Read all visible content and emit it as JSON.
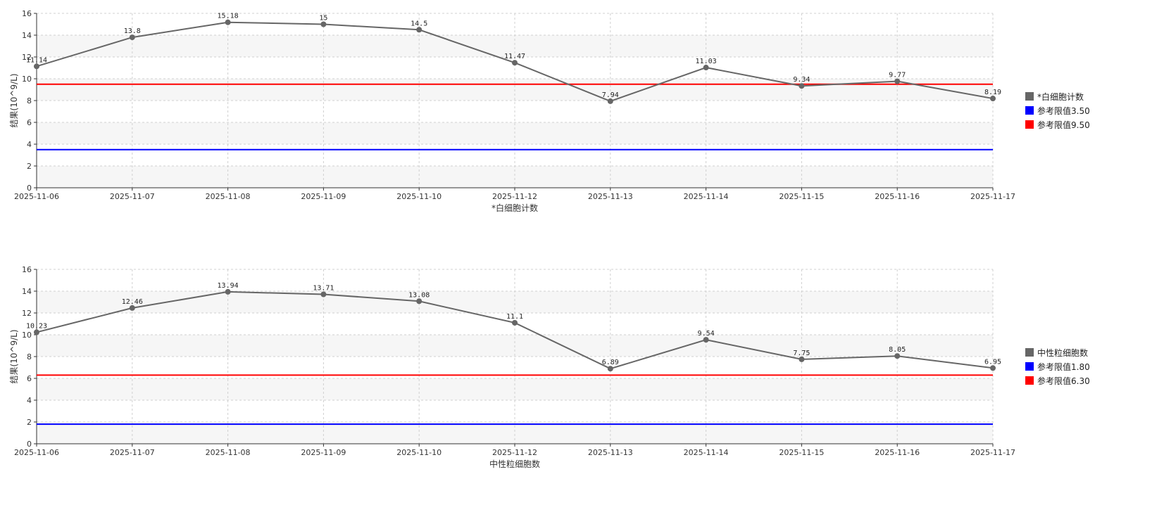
{
  "chart_data": [
    {
      "type": "line",
      "xlabel": "*白细胞计数",
      "ylabel": "结果(10^9/L)",
      "ylim": [
        0,
        16
      ],
      "yticks": [
        "0",
        "2",
        "4",
        "6",
        "8",
        "10",
        "12",
        "14",
        "16"
      ],
      "categories": [
        "2025-11-06",
        "2025-11-07",
        "2025-11-08",
        "2025-11-09",
        "2025-11-10",
        "2025-11-12",
        "2025-11-13",
        "2025-11-14",
        "2025-11-15",
        "2025-11-16",
        "2025-11-17"
      ],
      "series": [
        {
          "name": "*白细胞计数",
          "color": "#666666",
          "values": [
            11.14,
            13.8,
            15.18,
            15,
            14.5,
            11.47,
            7.94,
            11.03,
            9.34,
            9.77,
            8.19
          ],
          "labels": [
            "11.14",
            "13.8",
            "15.18",
            "15",
            "14.5",
            "11.47",
            "7.94",
            "11.03",
            "9.34",
            "9.77",
            "8.19"
          ]
        }
      ],
      "reference_lines": [
        {
          "name": "参考限值3.50",
          "value": 3.5,
          "color": "#0000ff"
        },
        {
          "name": "参考限值9.50",
          "value": 9.5,
          "color": "#ff0000"
        }
      ],
      "grid": true,
      "legend_position": "right"
    },
    {
      "type": "line",
      "xlabel": "中性粒细胞数",
      "ylabel": "结果(10^9/L)",
      "ylim": [
        0,
        16
      ],
      "yticks": [
        "0",
        "2",
        "4",
        "6",
        "8",
        "10",
        "12",
        "14",
        "16"
      ],
      "categories": [
        "2025-11-06",
        "2025-11-07",
        "2025-11-08",
        "2025-11-09",
        "2025-11-10",
        "2025-11-12",
        "2025-11-13",
        "2025-11-14",
        "2025-11-15",
        "2025-11-16",
        "2025-11-17"
      ],
      "series": [
        {
          "name": "中性粒细胞数",
          "color": "#666666",
          "values": [
            10.23,
            12.46,
            13.94,
            13.71,
            13.08,
            11.1,
            6.89,
            9.54,
            7.75,
            8.05,
            6.95
          ],
          "labels": [
            "10.23",
            "12.46",
            "13.94",
            "13.71",
            "13.08",
            "11.1",
            "6.89",
            "9.54",
            "7.75",
            "8.05",
            "6.95"
          ]
        }
      ],
      "reference_lines": [
        {
          "name": "参考限值1.80",
          "value": 1.8,
          "color": "#0000ff"
        },
        {
          "name": "参考限值6.30",
          "value": 6.3,
          "color": "#ff0000"
        }
      ],
      "grid": true,
      "legend_position": "right"
    }
  ]
}
